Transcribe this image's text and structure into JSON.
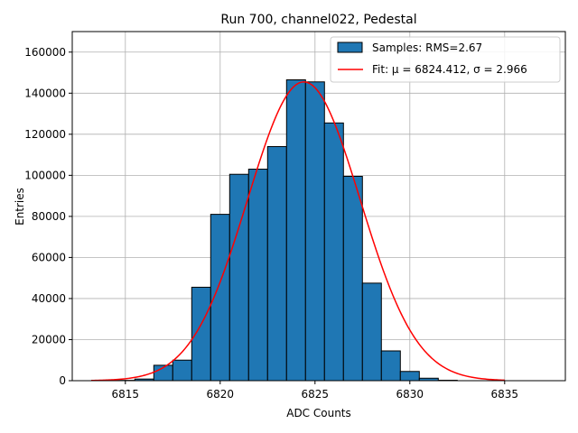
{
  "chart_data": {
    "type": "bar",
    "title": "Run 700, channel022, Pedestal",
    "xlabel": "ADC Counts",
    "ylabel": "Entries",
    "xlim": [
      6812.2,
      6838.2
    ],
    "ylim": [
      0,
      170000
    ],
    "x_ticks": [
      6815,
      6820,
      6825,
      6830,
      6835
    ],
    "y_ticks": [
      0,
      20000,
      40000,
      60000,
      80000,
      100000,
      120000,
      140000,
      160000
    ],
    "grid": true,
    "legend_position": "top-right",
    "bins": {
      "edges": [
        6813.5,
        6814.5,
        6815.5,
        6816.5,
        6817.5,
        6818.5,
        6819.5,
        6820.5,
        6821.5,
        6822.5,
        6823.5,
        6824.5,
        6825.5,
        6826.5,
        6827.5,
        6828.5,
        6829.5,
        6830.5,
        6831.5,
        6832.5
      ],
      "values": [
        50,
        150,
        800,
        7500,
        10000,
        45500,
        81000,
        100500,
        103000,
        114000,
        146500,
        145500,
        125500,
        99500,
        47500,
        14500,
        4500,
        1200,
        200
      ]
    },
    "series": [
      {
        "name": "Samples: RMS=2.67",
        "kind": "histogram",
        "color": "#1f77b4",
        "edgecolor": "#000000"
      },
      {
        "name": "Fit: μ = 6824.412, σ = 2.966",
        "kind": "gaussian-fit",
        "color": "#ff0000",
        "amplitude": 145500,
        "mu": 6824.412,
        "sigma": 2.966,
        "x_range": [
          6813.2,
          6835
        ]
      }
    ]
  }
}
